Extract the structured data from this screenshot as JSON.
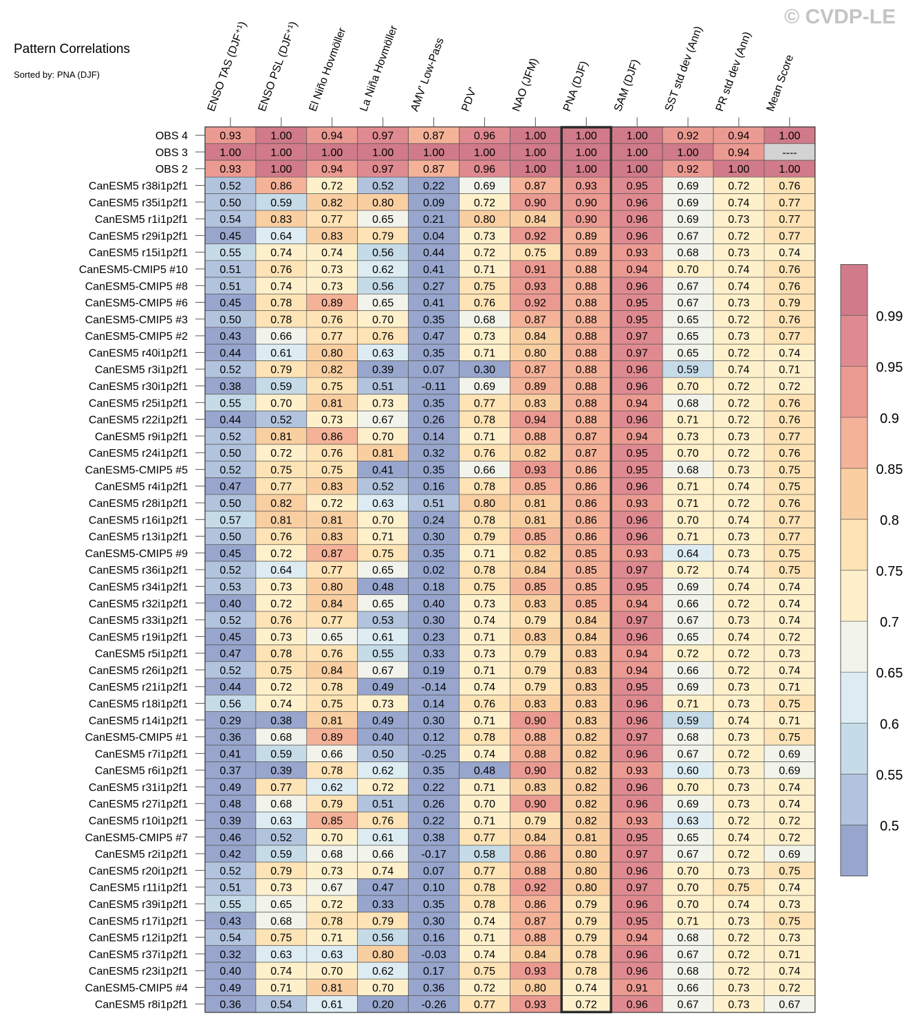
{
  "chart_data": {
    "type": "heatmap",
    "title": "Pattern Correlations",
    "subtitle": "Sorted by: PNA (DJF)",
    "watermark": "© CVDP-LE",
    "columns": [
      "ENSO TAS (DJF⁺¹)",
      "ENSO PSL (DJF⁺¹)",
      "El Niño Hovmöller",
      "La Niña Hovmöller",
      "AMV' Low-Pass",
      "PDV'",
      "NAO (JFM)",
      "PNA (DJF)",
      "SAM (DJF)",
      "SST std dev (Ann)",
      "PR std dev (Ann)",
      "Mean Score"
    ],
    "highlight_column": "PNA (DJF)",
    "missing_label": "----",
    "rows": [
      {
        "label": "OBS 4",
        "values": [
          0.93,
          1.0,
          0.94,
          0.97,
          0.87,
          0.96,
          1.0,
          1.0,
          1.0,
          0.92,
          0.94,
          1.0
        ]
      },
      {
        "label": "OBS 3",
        "values": [
          1.0,
          1.0,
          1.0,
          1.0,
          1.0,
          1.0,
          1.0,
          1.0,
          1.0,
          1.0,
          0.94,
          null
        ]
      },
      {
        "label": "OBS 2",
        "values": [
          0.93,
          1.0,
          0.94,
          0.97,
          0.87,
          0.96,
          1.0,
          1.0,
          1.0,
          0.92,
          1.0,
          1.0
        ]
      },
      {
        "label": "CanESM5 r38i1p2f1",
        "values": [
          0.52,
          0.86,
          0.72,
          0.52,
          0.22,
          0.69,
          0.87,
          0.93,
          0.95,
          0.69,
          0.72,
          0.76
        ]
      },
      {
        "label": "CanESM5 r35i1p2f1",
        "values": [
          0.5,
          0.59,
          0.82,
          0.8,
          0.09,
          0.72,
          0.9,
          0.9,
          0.96,
          0.69,
          0.74,
          0.77
        ]
      },
      {
        "label": "CanESM5 r1i1p2f1",
        "values": [
          0.54,
          0.83,
          0.77,
          0.65,
          0.21,
          0.8,
          0.84,
          0.9,
          0.96,
          0.69,
          0.73,
          0.77
        ]
      },
      {
        "label": "CanESM5 r29i1p2f1",
        "values": [
          0.45,
          0.64,
          0.83,
          0.79,
          0.04,
          0.73,
          0.92,
          0.89,
          0.96,
          0.67,
          0.72,
          0.77
        ]
      },
      {
        "label": "CanESM5 r15i1p2f1",
        "values": [
          0.55,
          0.74,
          0.74,
          0.56,
          0.44,
          0.72,
          0.75,
          0.89,
          0.93,
          0.68,
          0.73,
          0.74
        ]
      },
      {
        "label": "CanESM5-CMIP5 #10",
        "values": [
          0.51,
          0.76,
          0.73,
          0.62,
          0.41,
          0.71,
          0.91,
          0.88,
          0.94,
          0.7,
          0.74,
          0.76
        ]
      },
      {
        "label": "CanESM5-CMIP5 #8",
        "values": [
          0.51,
          0.74,
          0.73,
          0.56,
          0.27,
          0.75,
          0.93,
          0.88,
          0.96,
          0.67,
          0.74,
          0.76
        ]
      },
      {
        "label": "CanESM5-CMIP5 #6",
        "values": [
          0.45,
          0.78,
          0.89,
          0.65,
          0.41,
          0.76,
          0.92,
          0.88,
          0.95,
          0.67,
          0.73,
          0.79
        ]
      },
      {
        "label": "CanESM5-CMIP5 #3",
        "values": [
          0.5,
          0.78,
          0.76,
          0.7,
          0.35,
          0.68,
          0.87,
          0.88,
          0.95,
          0.65,
          0.72,
          0.76
        ]
      },
      {
        "label": "CanESM5-CMIP5 #2",
        "values": [
          0.43,
          0.66,
          0.77,
          0.76,
          0.47,
          0.73,
          0.84,
          0.88,
          0.97,
          0.65,
          0.73,
          0.77
        ]
      },
      {
        "label": "CanESM5 r40i1p2f1",
        "values": [
          0.44,
          0.61,
          0.8,
          0.63,
          0.35,
          0.71,
          0.8,
          0.88,
          0.97,
          0.65,
          0.72,
          0.74
        ]
      },
      {
        "label": "CanESM5 r3i1p2f1",
        "values": [
          0.52,
          0.79,
          0.82,
          0.39,
          0.07,
          0.3,
          0.87,
          0.88,
          0.96,
          0.59,
          0.74,
          0.71
        ]
      },
      {
        "label": "CanESM5 r30i1p2f1",
        "values": [
          0.38,
          0.59,
          0.75,
          0.51,
          -0.11,
          0.69,
          0.89,
          0.88,
          0.96,
          0.7,
          0.72,
          0.72
        ]
      },
      {
        "label": "CanESM5 r25i1p2f1",
        "values": [
          0.55,
          0.7,
          0.81,
          0.73,
          0.35,
          0.77,
          0.83,
          0.88,
          0.94,
          0.68,
          0.72,
          0.76
        ]
      },
      {
        "label": "CanESM5 r22i1p2f1",
        "values": [
          0.44,
          0.52,
          0.73,
          0.67,
          0.26,
          0.78,
          0.94,
          0.88,
          0.96,
          0.71,
          0.72,
          0.76
        ]
      },
      {
        "label": "CanESM5 r9i1p2f1",
        "values": [
          0.52,
          0.81,
          0.86,
          0.7,
          0.14,
          0.71,
          0.88,
          0.87,
          0.94,
          0.73,
          0.73,
          0.77
        ]
      },
      {
        "label": "CanESM5 r24i1p2f1",
        "values": [
          0.5,
          0.72,
          0.76,
          0.81,
          0.32,
          0.76,
          0.82,
          0.87,
          0.95,
          0.7,
          0.72,
          0.76
        ]
      },
      {
        "label": "CanESM5-CMIP5 #5",
        "values": [
          0.52,
          0.75,
          0.75,
          0.41,
          0.35,
          0.66,
          0.93,
          0.86,
          0.95,
          0.68,
          0.73,
          0.75
        ]
      },
      {
        "label": "CanESM5 r4i1p2f1",
        "values": [
          0.47,
          0.77,
          0.83,
          0.52,
          0.16,
          0.78,
          0.85,
          0.86,
          0.96,
          0.71,
          0.74,
          0.75
        ]
      },
      {
        "label": "CanESM5 r28i1p2f1",
        "values": [
          0.5,
          0.82,
          0.72,
          0.63,
          0.51,
          0.8,
          0.81,
          0.86,
          0.93,
          0.71,
          0.72,
          0.76
        ]
      },
      {
        "label": "CanESM5 r16i1p2f1",
        "values": [
          0.57,
          0.81,
          0.81,
          0.7,
          0.24,
          0.78,
          0.81,
          0.86,
          0.96,
          0.7,
          0.74,
          0.77
        ]
      },
      {
        "label": "CanESM5 r13i1p2f1",
        "values": [
          0.5,
          0.76,
          0.83,
          0.71,
          0.3,
          0.79,
          0.85,
          0.86,
          0.96,
          0.71,
          0.73,
          0.77
        ]
      },
      {
        "label": "CanESM5-CMIP5 #9",
        "values": [
          0.45,
          0.72,
          0.87,
          0.75,
          0.35,
          0.71,
          0.82,
          0.85,
          0.93,
          0.64,
          0.73,
          0.75
        ]
      },
      {
        "label": "CanESM5 r36i1p2f1",
        "values": [
          0.52,
          0.64,
          0.77,
          0.65,
          0.02,
          0.78,
          0.84,
          0.85,
          0.97,
          0.72,
          0.74,
          0.75
        ]
      },
      {
        "label": "CanESM5 r34i1p2f1",
        "values": [
          0.53,
          0.73,
          0.8,
          0.48,
          0.18,
          0.75,
          0.85,
          0.85,
          0.95,
          0.69,
          0.74,
          0.74
        ]
      },
      {
        "label": "CanESM5 r32i1p2f1",
        "values": [
          0.4,
          0.72,
          0.84,
          0.65,
          0.4,
          0.73,
          0.83,
          0.85,
          0.94,
          0.66,
          0.72,
          0.74
        ]
      },
      {
        "label": "CanESM5 r33i1p2f1",
        "values": [
          0.52,
          0.76,
          0.77,
          0.53,
          0.3,
          0.74,
          0.79,
          0.84,
          0.97,
          0.67,
          0.73,
          0.74
        ]
      },
      {
        "label": "CanESM5 r19i1p2f1",
        "values": [
          0.45,
          0.73,
          0.65,
          0.61,
          0.23,
          0.71,
          0.83,
          0.84,
          0.96,
          0.65,
          0.74,
          0.72
        ]
      },
      {
        "label": "CanESM5 r5i1p2f1",
        "values": [
          0.47,
          0.78,
          0.76,
          0.55,
          0.33,
          0.73,
          0.79,
          0.83,
          0.94,
          0.72,
          0.72,
          0.73
        ]
      },
      {
        "label": "CanESM5 r26i1p2f1",
        "values": [
          0.52,
          0.75,
          0.84,
          0.67,
          0.19,
          0.71,
          0.79,
          0.83,
          0.94,
          0.66,
          0.72,
          0.74
        ]
      },
      {
        "label": "CanESM5 r21i1p2f1",
        "values": [
          0.44,
          0.72,
          0.78,
          0.49,
          -0.14,
          0.74,
          0.79,
          0.83,
          0.95,
          0.69,
          0.73,
          0.71
        ]
      },
      {
        "label": "CanESM5 r18i1p2f1",
        "values": [
          0.56,
          0.74,
          0.75,
          0.73,
          0.14,
          0.76,
          0.83,
          0.83,
          0.96,
          0.71,
          0.73,
          0.75
        ]
      },
      {
        "label": "CanESM5 r14i1p2f1",
        "values": [
          0.29,
          0.38,
          0.81,
          0.49,
          0.3,
          0.71,
          0.9,
          0.83,
          0.96,
          0.59,
          0.74,
          0.71
        ]
      },
      {
        "label": "CanESM5-CMIP5 #1",
        "values": [
          0.36,
          0.68,
          0.89,
          0.4,
          0.12,
          0.78,
          0.88,
          0.82,
          0.97,
          0.68,
          0.73,
          0.75
        ]
      },
      {
        "label": "CanESM5 r7i1p2f1",
        "values": [
          0.41,
          0.59,
          0.66,
          0.5,
          -0.25,
          0.74,
          0.88,
          0.82,
          0.96,
          0.67,
          0.72,
          0.69
        ]
      },
      {
        "label": "CanESM5 r6i1p2f1",
        "values": [
          0.37,
          0.39,
          0.78,
          0.62,
          0.35,
          0.48,
          0.9,
          0.82,
          0.93,
          0.6,
          0.73,
          0.69
        ]
      },
      {
        "label": "CanESM5 r31i1p2f1",
        "values": [
          0.49,
          0.77,
          0.62,
          0.72,
          0.22,
          0.71,
          0.83,
          0.82,
          0.96,
          0.7,
          0.73,
          0.74
        ]
      },
      {
        "label": "CanESM5 r27i1p2f1",
        "values": [
          0.48,
          0.68,
          0.79,
          0.51,
          0.26,
          0.7,
          0.9,
          0.82,
          0.96,
          0.69,
          0.73,
          0.74
        ]
      },
      {
        "label": "CanESM5 r10i1p2f1",
        "values": [
          0.39,
          0.63,
          0.85,
          0.76,
          0.22,
          0.71,
          0.79,
          0.82,
          0.93,
          0.63,
          0.72,
          0.72
        ]
      },
      {
        "label": "CanESM5-CMIP5 #7",
        "values": [
          0.46,
          0.52,
          0.7,
          0.61,
          0.38,
          0.77,
          0.84,
          0.81,
          0.95,
          0.65,
          0.74,
          0.72
        ]
      },
      {
        "label": "CanESM5 r2i1p2f1",
        "values": [
          0.42,
          0.59,
          0.68,
          0.66,
          -0.17,
          0.58,
          0.86,
          0.8,
          0.97,
          0.67,
          0.72,
          0.69
        ]
      },
      {
        "label": "CanESM5 r20i1p2f1",
        "values": [
          0.52,
          0.79,
          0.73,
          0.74,
          0.07,
          0.77,
          0.88,
          0.8,
          0.96,
          0.7,
          0.73,
          0.75
        ]
      },
      {
        "label": "CanESM5 r11i1p2f1",
        "values": [
          0.51,
          0.73,
          0.67,
          0.47,
          0.1,
          0.78,
          0.92,
          0.8,
          0.97,
          0.7,
          0.75,
          0.74
        ]
      },
      {
        "label": "CanESM5 r39i1p2f1",
        "values": [
          0.55,
          0.65,
          0.72,
          0.33,
          0.35,
          0.78,
          0.86,
          0.79,
          0.96,
          0.7,
          0.74,
          0.73
        ]
      },
      {
        "label": "CanESM5 r17i1p2f1",
        "values": [
          0.43,
          0.68,
          0.78,
          0.79,
          0.3,
          0.74,
          0.87,
          0.79,
          0.95,
          0.71,
          0.73,
          0.75
        ]
      },
      {
        "label": "CanESM5 r12i1p2f1",
        "values": [
          0.54,
          0.75,
          0.71,
          0.56,
          0.16,
          0.71,
          0.88,
          0.79,
          0.94,
          0.68,
          0.72,
          0.73
        ]
      },
      {
        "label": "CanESM5 r37i1p2f1",
        "values": [
          0.32,
          0.63,
          0.63,
          0.8,
          -0.03,
          0.74,
          0.84,
          0.78,
          0.96,
          0.67,
          0.72,
          0.71
        ]
      },
      {
        "label": "CanESM5 r23i1p2f1",
        "values": [
          0.4,
          0.74,
          0.7,
          0.62,
          0.17,
          0.75,
          0.93,
          0.78,
          0.96,
          0.68,
          0.72,
          0.74
        ]
      },
      {
        "label": "CanESM5-CMIP5 #4",
        "values": [
          0.49,
          0.71,
          0.81,
          0.7,
          0.36,
          0.72,
          0.8,
          0.74,
          0.91,
          0.66,
          0.73,
          0.72
        ]
      },
      {
        "label": "CanESM5 r8i1p2f1",
        "values": [
          0.36,
          0.54,
          0.61,
          0.2,
          -0.26,
          0.77,
          0.93,
          0.72,
          0.96,
          0.67,
          0.73,
          0.67
        ]
      }
    ],
    "colorbar": {
      "levels": [
        0.5,
        0.55,
        0.6,
        0.65,
        0.7,
        0.75,
        0.8,
        0.85,
        0.9,
        0.95,
        0.99
      ],
      "tick_labels": [
        "0.5",
        "0.55",
        "0.6",
        "0.65",
        "0.7",
        "0.75",
        "0.8",
        "0.85",
        "0.9",
        "0.95",
        "0.99"
      ],
      "colors": [
        "#98a6cd",
        "#b2c3dd",
        "#c6dbe8",
        "#ddecf2",
        "#f2f3ea",
        "#fdf0cb",
        "#fde3b5",
        "#f9cfa2",
        "#f4b299",
        "#eb9a92",
        "#df8a90",
        "#d07a8a"
      ],
      "missing_color": "#d3d3d3"
    }
  }
}
